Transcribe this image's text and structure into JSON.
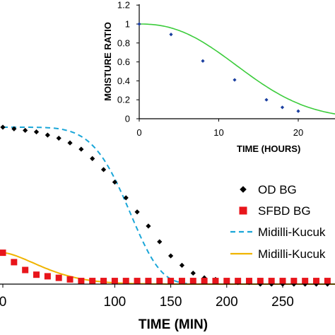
{
  "chart_data": [
    {
      "type": "scatter",
      "role": "main",
      "xlabel": "TIME (MIN)",
      "ylabel": "",
      "xlim": [
        0,
        300
      ],
      "ylim": [
        0,
        1.08
      ],
      "x_ticks": [
        "0",
        "100",
        "150",
        "200",
        "250"
      ],
      "legend_placement": "right",
      "series": [
        {
          "name": "OD BG",
          "kind": "points",
          "marker": "diamond",
          "color": "#000000",
          "x": [
            0,
            10,
            20,
            30,
            40,
            50,
            60,
            70,
            80,
            90,
            100,
            110,
            120,
            130,
            140,
            150,
            160,
            170,
            180,
            190,
            200,
            210,
            220,
            230,
            240,
            250,
            260,
            270,
            280,
            290,
            300
          ],
          "y": [
            1.0,
            0.99,
            0.98,
            0.97,
            0.95,
            0.93,
            0.9,
            0.86,
            0.8,
            0.73,
            0.65,
            0.55,
            0.46,
            0.37,
            0.27,
            0.18,
            0.12,
            0.07,
            0.04,
            0.03,
            0.02,
            0.01,
            0.01,
            0.0,
            0.0,
            0.0,
            0.0,
            0.0,
            0.0,
            0.0,
            0.0
          ]
        },
        {
          "name": "SFBD BG",
          "kind": "points",
          "marker": "square",
          "color": "#e8151b",
          "x": [
            0,
            10,
            20,
            30,
            40,
            50,
            60,
            70,
            80,
            90,
            100,
            110,
            120,
            130,
            140,
            150,
            160,
            170,
            180,
            190,
            200,
            210,
            220,
            230,
            240,
            250,
            260,
            270,
            280,
            290,
            300
          ],
          "y": [
            0.2,
            0.14,
            0.09,
            0.06,
            0.05,
            0.04,
            0.03,
            0.02,
            0.02,
            0.02,
            0.02,
            0.02,
            0.02,
            0.02,
            0.02,
            0.02,
            0.02,
            0.02,
            0.02,
            0.02,
            0.02,
            0.02,
            0.02,
            0.02,
            0.02,
            0.02,
            0.02,
            0.02,
            0.02,
            0.02,
            0.02
          ]
        },
        {
          "name": "Midilli-Kucuk",
          "kind": "line",
          "style": "dashed",
          "color": "#1aa6d8",
          "model": {
            "a": 1.0,
            "k": 1e-11,
            "n": 5.3,
            "b": 0.0
          }
        },
        {
          "name": "Midilli-Kucuk",
          "kind": "line",
          "style": "solid",
          "color": "#f0b400",
          "model": {
            "a": 0.2,
            "k": 0.002,
            "n": 1.6,
            "b": 0.0
          }
        }
      ]
    },
    {
      "type": "scatter",
      "role": "inset",
      "xlabel": "TIME (HOURS)",
      "ylabel": "MOISTURE RATIO",
      "xlim": [
        0,
        25
      ],
      "ylim": [
        0,
        1.2
      ],
      "x_ticks": [
        "0",
        "10",
        "20"
      ],
      "y_ticks": [
        "0",
        "0.2",
        "0.4",
        "0.6",
        "0.8",
        "1",
        "1.2"
      ],
      "series": [
        {
          "name": "",
          "kind": "points",
          "marker": "diamond",
          "color": "#1b3fa0",
          "x": [
            0,
            4,
            8,
            12,
            16,
            18,
            20
          ],
          "y": [
            1.0,
            0.89,
            0.61,
            0.41,
            0.2,
            0.12,
            0.08
          ]
        },
        {
          "name": "",
          "kind": "line",
          "style": "solid",
          "color": "#3ccc3c",
          "model": {
            "a": 1.0,
            "k": 0.0016,
            "n": 2.35,
            "b": 0.0
          }
        }
      ]
    }
  ]
}
